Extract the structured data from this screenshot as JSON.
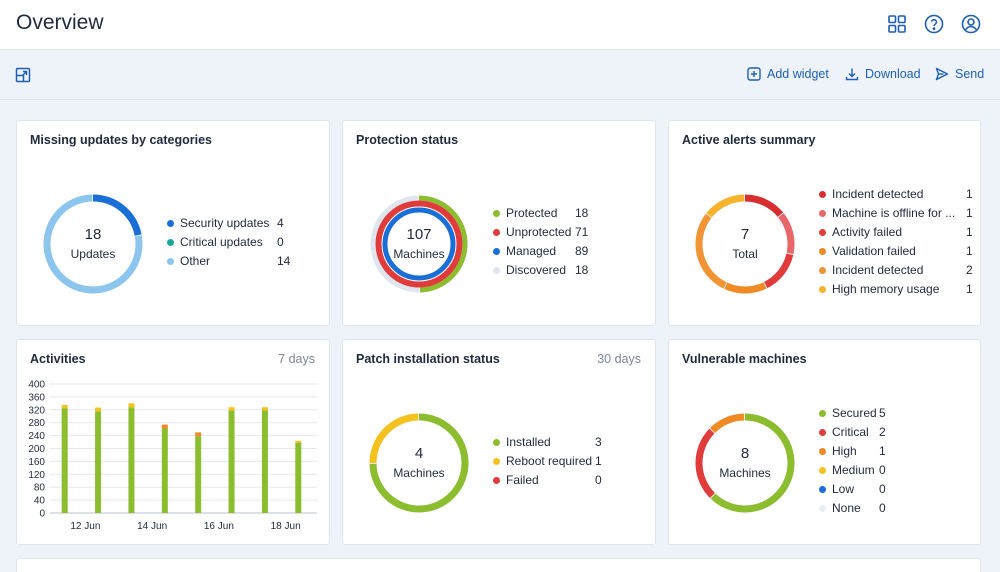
{
  "header": {
    "title": "Overview"
  },
  "toolbar": {
    "add_widget": "Add widget",
    "download": "Download",
    "send": "Send"
  },
  "colors": {
    "accent": "#1e5fb4",
    "blue": "#1a6fd6",
    "teal": "#1aa89a",
    "light_blue": "#8cc6ef",
    "green": "#8cbd2f",
    "red": "#e13c3c",
    "orange": "#f08a24",
    "amber": "#f6b42d",
    "yellow": "#f4c21f",
    "pale": "#dfe6f0",
    "track": "#e9eef5"
  },
  "widgets": {
    "missing_updates": {
      "title": "Missing updates by categories",
      "center_value": "18",
      "center_label": "Updates",
      "items": [
        {
          "name": "Security updates",
          "value": "4",
          "color": "#1a6fd6"
        },
        {
          "name": "Critical updates",
          "value": "0",
          "color": "#1aa89a"
        },
        {
          "name": "Other",
          "value": "14",
          "color": "#8cc6ef"
        }
      ]
    },
    "protection_status": {
      "title": "Protection status",
      "center_value": "107",
      "center_label": "Machines",
      "items": [
        {
          "name": "Protected",
          "value": "18",
          "color": "#8cbd2f"
        },
        {
          "name": "Unprotected",
          "value": "71",
          "color": "#e13c3c"
        },
        {
          "name": "Managed",
          "value": "89",
          "color": "#1a6fd6"
        },
        {
          "name": "Discovered",
          "value": "18",
          "color": "#dfe6f0"
        }
      ]
    },
    "active_alerts": {
      "title": "Active alerts summary",
      "center_value": "7",
      "center_label": "Total",
      "items": [
        {
          "name": "Incident detected",
          "value": "1",
          "color": "#d72f2f"
        },
        {
          "name": "Machine is offline for ...",
          "value": "1",
          "color": "#e8676a"
        },
        {
          "name": "Activity failed",
          "value": "1",
          "color": "#e13c3c"
        },
        {
          "name": "Validation failed",
          "value": "1",
          "color": "#f08a24"
        },
        {
          "name": "Incident detected",
          "value": "2",
          "color": "#f29433"
        },
        {
          "name": "High memory usage",
          "value": "1",
          "color": "#f6b42d"
        }
      ]
    },
    "activities": {
      "title": "Activities",
      "period": "7 days"
    },
    "patch_installation": {
      "title": "Patch installation status",
      "period": "30 days",
      "center_value": "4",
      "center_label": "Machines",
      "items": [
        {
          "name": "Installed",
          "value": "3",
          "color": "#8cbd2f"
        },
        {
          "name": "Reboot required",
          "value": "1",
          "color": "#f4c21f"
        },
        {
          "name": "Failed",
          "value": "0",
          "color": "#e13c3c"
        }
      ]
    },
    "vulnerable_machines": {
      "title": "Vulnerable machines",
      "center_value": "8",
      "center_label": "Machines",
      "items": [
        {
          "name": "Secured",
          "value": "5",
          "color": "#8cbd2f"
        },
        {
          "name": "Critical",
          "value": "2",
          "color": "#e13c3c"
        },
        {
          "name": "High",
          "value": "1",
          "color": "#f08a24"
        },
        {
          "name": "Medium",
          "value": "0",
          "color": "#f4c21f"
        },
        {
          "name": "Low",
          "value": "0",
          "color": "#1a6fd6"
        },
        {
          "name": "None",
          "value": "0",
          "color": "#e9eef5"
        }
      ]
    }
  },
  "chart_data": {
    "type": "bar",
    "stacked": true,
    "ylim": [
      0,
      400
    ],
    "y_ticks": [
      0,
      40,
      80,
      120,
      160,
      200,
      240,
      280,
      320,
      360,
      400
    ],
    "grid": true,
    "x_tick_labels": [
      "12 Jun",
      "14 Jun",
      "16 Jun",
      "18 Jun"
    ],
    "bars": [
      {
        "parts": [
          {
            "color": "#8cbd2f",
            "value": 325
          },
          {
            "color": "#f4c21f",
            "value": 10
          }
        ]
      },
      {
        "parts": [
          {
            "color": "#8cbd2f",
            "value": 315
          },
          {
            "color": "#f4c21f",
            "value": 12
          }
        ]
      },
      {
        "parts": [
          {
            "color": "#8cbd2f",
            "value": 328
          },
          {
            "color": "#f4c21f",
            "value": 12
          }
        ]
      },
      {
        "parts": [
          {
            "color": "#8cbd2f",
            "value": 262
          },
          {
            "color": "#f08a24",
            "value": 12
          }
        ]
      },
      {
        "parts": [
          {
            "color": "#8cbd2f",
            "value": 238
          },
          {
            "color": "#f08a24",
            "value": 12
          }
        ]
      },
      {
        "parts": [
          {
            "color": "#8cbd2f",
            "value": 318
          },
          {
            "color": "#f4c21f",
            "value": 10
          }
        ]
      },
      {
        "parts": [
          {
            "color": "#8cbd2f",
            "value": 318
          },
          {
            "color": "#f4c21f",
            "value": 10
          }
        ]
      },
      {
        "parts": [
          {
            "color": "#8cbd2f",
            "value": 218
          },
          {
            "color": "#f4c21f",
            "value": 6
          }
        ]
      }
    ]
  }
}
